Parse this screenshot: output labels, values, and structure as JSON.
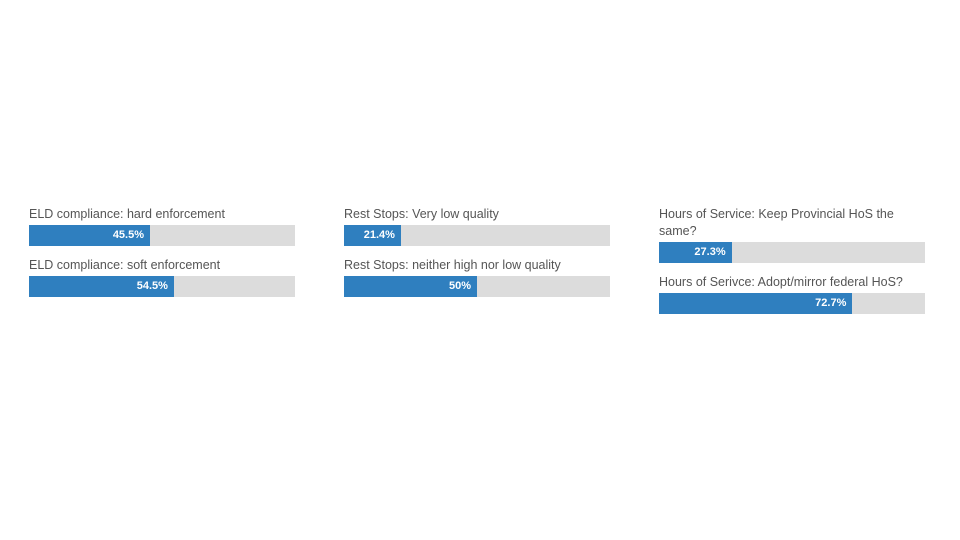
{
  "chart_data": [
    {
      "type": "bar",
      "orientation": "horizontal",
      "xlim": [
        0,
        100
      ],
      "categories": [
        "ELD compliance: hard enforcement",
        "ELD compliance: soft enforcement"
      ],
      "values": [
        45.5,
        54.5
      ],
      "value_labels": [
        "45.5%",
        "54.5%"
      ],
      "bar_color": "#2f7fbf",
      "track_color": "#dcdcdc"
    },
    {
      "type": "bar",
      "orientation": "horizontal",
      "xlim": [
        0,
        100
      ],
      "categories": [
        "Rest Stops: Very low quality",
        "Rest Stops: neither high nor low quality"
      ],
      "values": [
        21.4,
        50
      ],
      "value_labels": [
        "21.4%",
        "50%"
      ],
      "bar_color": "#2f7fbf",
      "track_color": "#dcdcdc"
    },
    {
      "type": "bar",
      "orientation": "horizontal",
      "xlim": [
        0,
        100
      ],
      "categories": [
        "Hours of Service: Keep Provincial HoS the same?",
        "Hours of Serivce: Adopt/mirror federal HoS?"
      ],
      "values": [
        27.3,
        72.7
      ],
      "value_labels": [
        "27.3%",
        "72.7%"
      ],
      "bar_color": "#2f7fbf",
      "track_color": "#dcdcdc"
    }
  ]
}
